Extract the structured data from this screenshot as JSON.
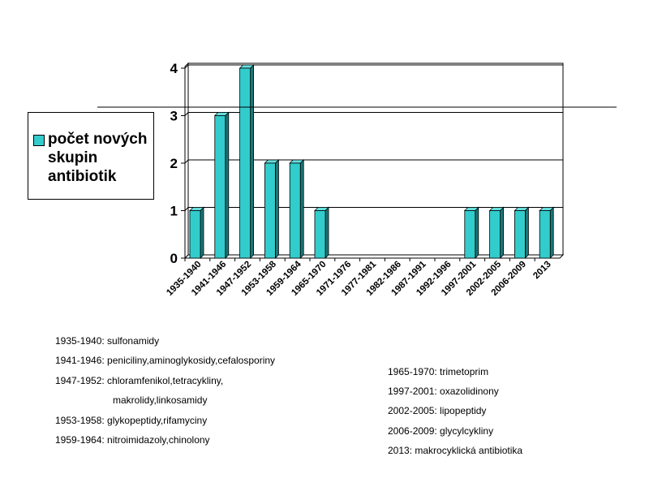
{
  "chart_data": {
    "type": "bar",
    "categories": [
      "1935-1940",
      "1941-1946",
      "1947-1952",
      "1953-1958",
      "1959-1964",
      "1965-1970",
      "1971-1976",
      "1977-1981",
      "1982-1986",
      "1987-1991",
      "1992-1996",
      "1997-2001",
      "2002-2005",
      "2006-2009",
      "2013"
    ],
    "series": [
      {
        "name": "počet nových skupin antibiotik",
        "values": [
          1,
          3,
          4,
          2,
          2,
          1,
          0,
          0,
          0,
          0,
          0,
          1,
          1,
          1,
          1
        ]
      }
    ],
    "y_ticks": [
      "0",
      "1",
      "2",
      "3",
      "4"
    ],
    "ylim": [
      0,
      4
    ],
    "grid": true,
    "legend": "left",
    "bar_color": "#33cccc",
    "bar_side_color": "#1a7777",
    "bar_top_color": "#66dddd",
    "bar_style": "3d"
  },
  "legend": {
    "label": "počet nových skupin antibiotik"
  },
  "notes": {
    "left": [
      "1935-1940: sulfonamidy",
      "1941-1946: peniciliny,aminoglykosidy,cefalosporiny",
      "1947-1952: chloramfenikol,tetracykliny,",
      "makrolidy,linkosamidy",
      "1953-1958: glykopeptidy,rifamyciny",
      "1959-1964: nitroimidazoly,chinolony"
    ],
    "right": [
      "1965-1970: trimetoprim",
      "1997-2001: oxazolidinony",
      "2002-2005: lipopeptidy",
      "2006-2009: glycylcykliny",
      "2013: makrocyklická antibiotika"
    ]
  }
}
